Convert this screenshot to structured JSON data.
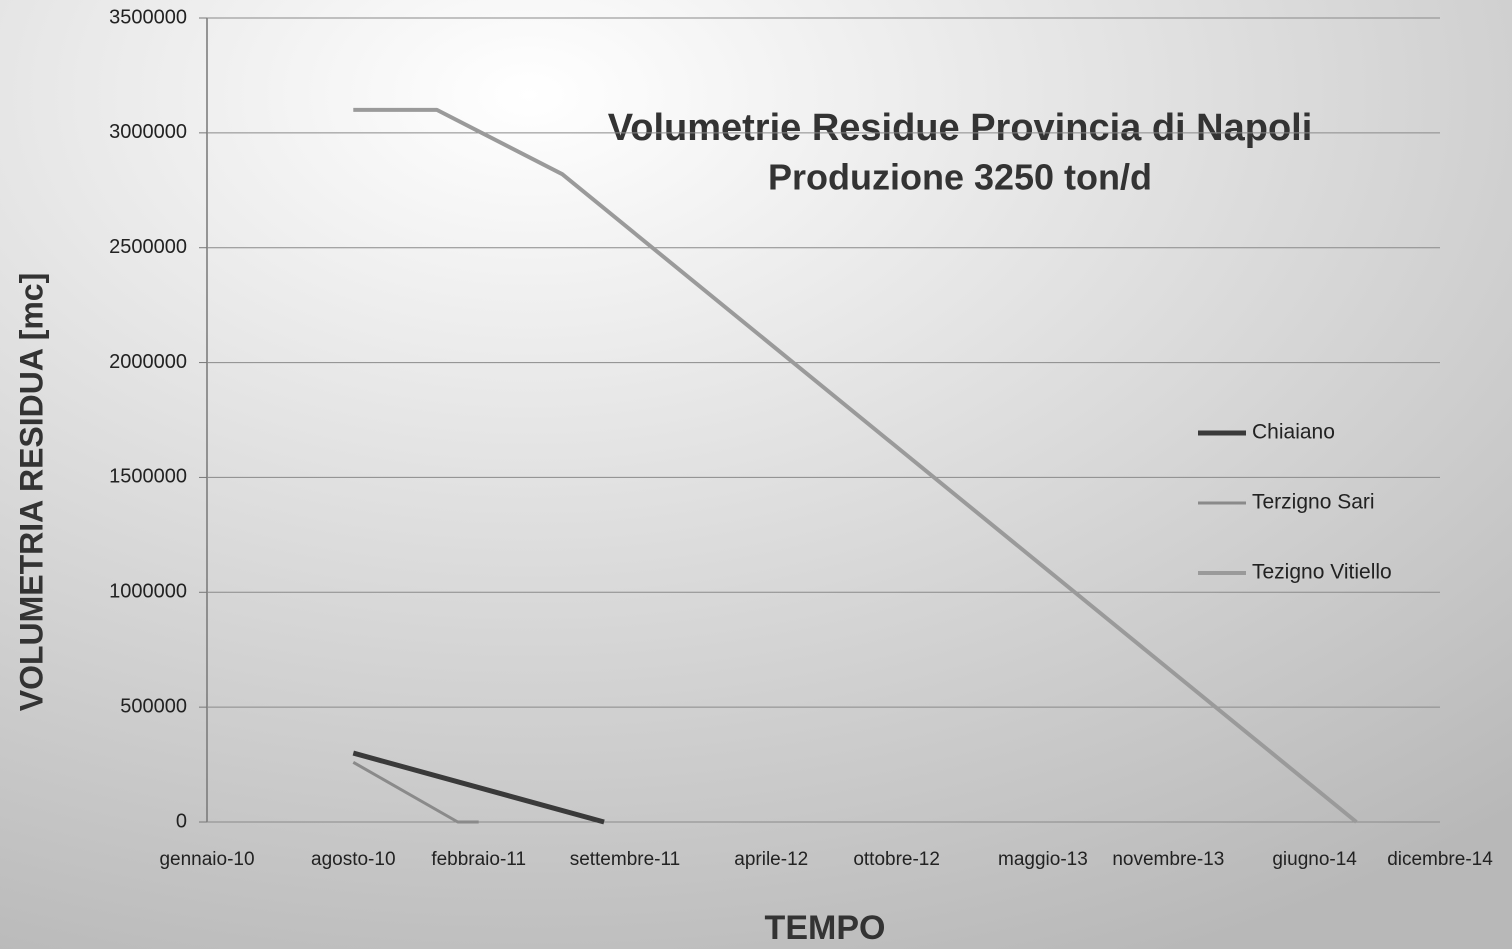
{
  "chart_data": {
    "type": "line",
    "title": "Volumetrie Residue Provincia di Napoli",
    "subtitle": "Produzione 3250 ton/d",
    "x_label": "TEMPO",
    "y_label": "VOLUMETRIA RESIDUA [mc]",
    "xlim": [
      "2010-01",
      "2014-12"
    ],
    "xticks": [
      {
        "value": "2010-01",
        "label": "gennaio-10"
      },
      {
        "value": "2010-08",
        "label": "agosto-10"
      },
      {
        "value": "2011-02",
        "label": "febbraio-11"
      },
      {
        "value": "2011-09",
        "label": "settembre-11"
      },
      {
        "value": "2012-04",
        "label": "aprile-12"
      },
      {
        "value": "2012-10",
        "label": "ottobre-12"
      },
      {
        "value": "2013-05",
        "label": "maggio-13"
      },
      {
        "value": "2013-11",
        "label": "novembre-13"
      },
      {
        "value": "2014-06",
        "label": "giugno-14"
      },
      {
        "value": "2014-12",
        "label": "dicembre-14"
      }
    ],
    "ylim": [
      0,
      3500000
    ],
    "yticks": [
      0,
      500000,
      1000000,
      1500000,
      2000000,
      2500000,
      3000000,
      3500000
    ],
    "grid": true,
    "legend": "right",
    "series": [
      {
        "name": "Chiaiano",
        "color": "#3a3a3a",
        "width": 5,
        "x": [
          "2010-08",
          "2011-08"
        ],
        "values": [
          300000,
          0
        ]
      },
      {
        "name": "Terzigno Sari",
        "color": "#8a8a8a",
        "width": 3,
        "x": [
          "2010-08",
          "2011-01",
          "2011-02"
        ],
        "values": [
          260000,
          0,
          0
        ]
      },
      {
        "name": "Tezigno Vitiello",
        "color": "#9a9a9a",
        "width": 4,
        "x": [
          "2010-08",
          "2010-12",
          "2011-06",
          "2014-08"
        ],
        "values": [
          3100000,
          3100000,
          2820000,
          0
        ]
      }
    ]
  }
}
